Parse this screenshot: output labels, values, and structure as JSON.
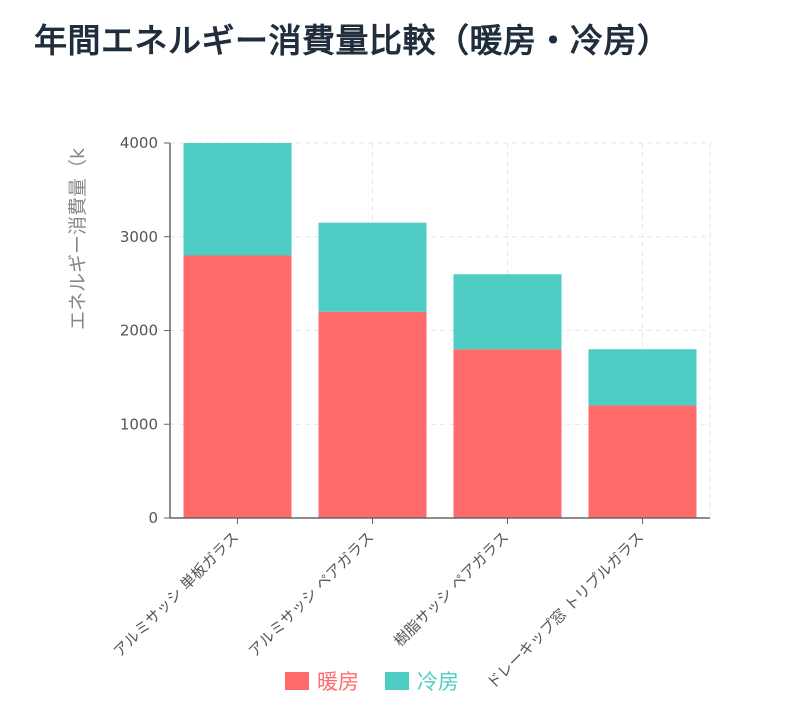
{
  "title": "年間エネルギー消費量比較（暖房・冷房）",
  "chart_data": {
    "type": "bar",
    "stacked": true,
    "categories": [
      "アルミサッシ 単板ガラス",
      "アルミサッシ ペアガラス",
      "樹脂サッシ ペアガラス",
      "ドレーキップ窓 トリプルガラス"
    ],
    "series": [
      {
        "name": "暖房",
        "color": "#ff6b6b",
        "values": [
          2800,
          2200,
          1800,
          1200
        ]
      },
      {
        "name": "冷房",
        "color": "#4ecdc4",
        "values": [
          1200,
          950,
          800,
          600
        ]
      }
    ],
    "ylabel": "エネルギー消費量（k",
    "ylim": [
      0,
      4000
    ],
    "yticks": [
      0,
      1000,
      2000,
      3000,
      4000
    ],
    "grid": true,
    "legend_position": "bottom"
  }
}
